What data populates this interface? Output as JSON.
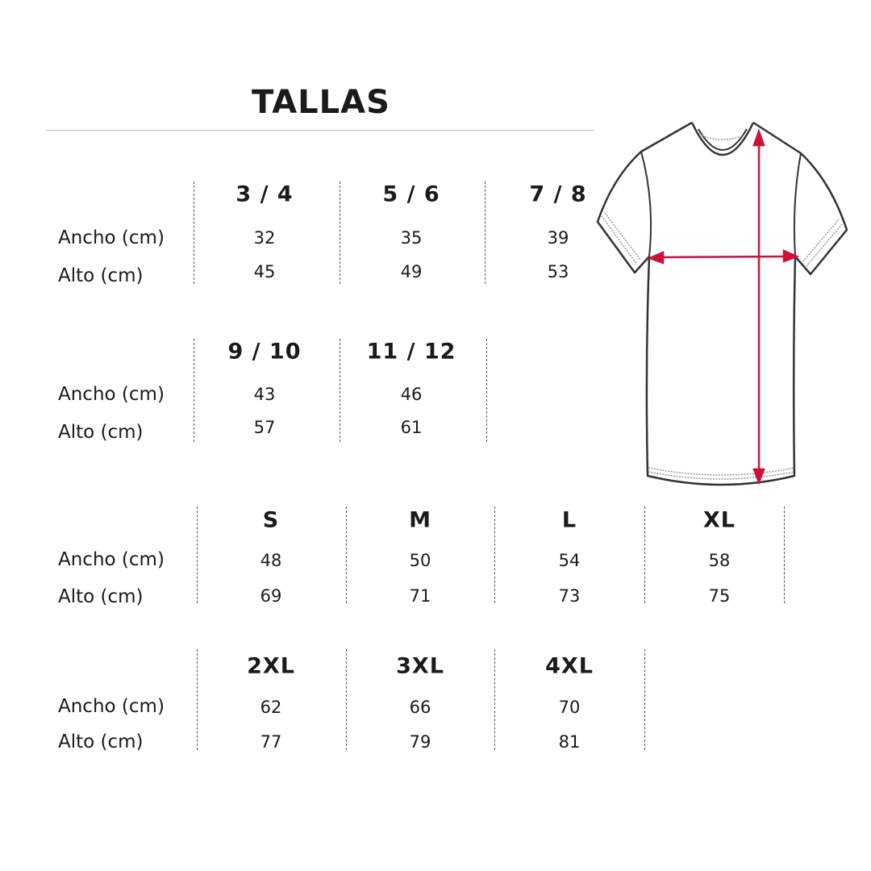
{
  "title": "TALLAS",
  "row_labels": {
    "width": "Ancho (cm)",
    "height": "Alto (cm)"
  },
  "groups": [
    {
      "sizes": [
        {
          "size": "3 / 4",
          "width": "32",
          "height": "45"
        },
        {
          "size": "5 / 6",
          "width": "35",
          "height": "49"
        },
        {
          "size": "7 / 8",
          "width": "39",
          "height": "53"
        }
      ]
    },
    {
      "sizes": [
        {
          "size": "9 / 10",
          "width": "43",
          "height": "57"
        },
        {
          "size": "11 / 12",
          "width": "46",
          "height": "61"
        }
      ]
    },
    {
      "sizes": [
        {
          "size": "S",
          "width": "48",
          "height": "69"
        },
        {
          "size": "M",
          "width": "50",
          "height": "71"
        },
        {
          "size": "L",
          "width": "54",
          "height": "73"
        },
        {
          "size": "XL",
          "width": "58",
          "height": "75"
        }
      ]
    },
    {
      "sizes": [
        {
          "size": "2XL",
          "width": "62",
          "height": "77"
        },
        {
          "size": "3XL",
          "width": "66",
          "height": "79"
        },
        {
          "size": "4XL",
          "width": "70",
          "height": "81"
        }
      ]
    }
  ],
  "colors": {
    "measure_arrow": "#d0103a",
    "outline": "#333333"
  },
  "illustration": "tshirt-measure-icon"
}
